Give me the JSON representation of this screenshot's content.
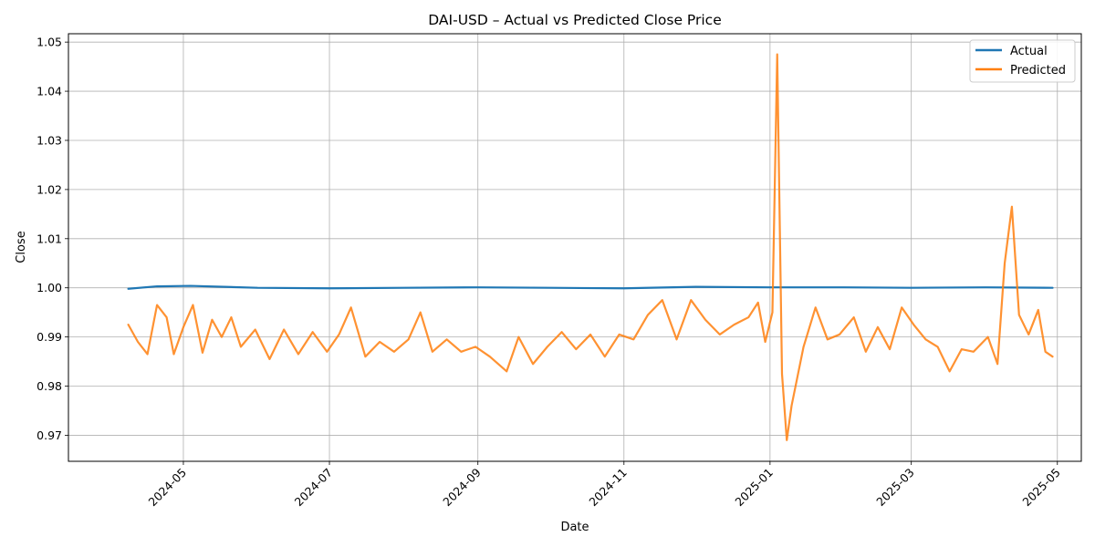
{
  "chart_data": {
    "type": "line",
    "title": "DAI-USD – Actual vs Predicted Close Price",
    "xlabel": "Date",
    "ylabel": "Close",
    "xlim": [
      "2024-03-14",
      "2025-05-11"
    ],
    "ylim": [
      0.9647,
      1.0517
    ],
    "grid": true,
    "legend_position": "top-right",
    "x_ticks": [
      "2024-05",
      "2024-07",
      "2024-09",
      "2024-11",
      "2025-01",
      "2025-03",
      "2025-05"
    ],
    "y_ticks": [
      "0.97",
      "0.98",
      "0.99",
      "1.00",
      "1.01",
      "1.02",
      "1.03",
      "1.04",
      "1.05"
    ],
    "series": [
      {
        "name": "Actual",
        "color": "#1f77b4",
        "points": [
          [
            "2024-04-08",
            0.9998
          ],
          [
            "2024-04-20",
            1.0003
          ],
          [
            "2024-05-04",
            1.0004
          ],
          [
            "2024-06-01",
            1.0
          ],
          [
            "2024-07-01",
            0.9999
          ],
          [
            "2024-08-01",
            1.0
          ],
          [
            "2024-09-01",
            1.0001
          ],
          [
            "2024-10-01",
            1.0
          ],
          [
            "2024-11-01",
            0.9999
          ],
          [
            "2024-12-01",
            1.0002
          ],
          [
            "2025-01-01",
            1.0001
          ],
          [
            "2025-02-01",
            1.0001
          ],
          [
            "2025-03-01",
            1.0
          ],
          [
            "2025-04-01",
            1.0001
          ],
          [
            "2025-04-29",
            1.0
          ]
        ]
      },
      {
        "name": "Predicted",
        "color": "#ff7f0e",
        "points": [
          [
            "2024-04-08",
            0.9925
          ],
          [
            "2024-04-12",
            0.989
          ],
          [
            "2024-04-16",
            0.9865
          ],
          [
            "2024-04-20",
            0.9965
          ],
          [
            "2024-04-24",
            0.994
          ],
          [
            "2024-04-27",
            0.9865
          ],
          [
            "2024-05-01",
            0.992
          ],
          [
            "2024-05-05",
            0.9965
          ],
          [
            "2024-05-09",
            0.9868
          ],
          [
            "2024-05-13",
            0.9935
          ],
          [
            "2024-05-17",
            0.99
          ],
          [
            "2024-05-21",
            0.994
          ],
          [
            "2024-05-25",
            0.988
          ],
          [
            "2024-05-31",
            0.9915
          ],
          [
            "2024-06-06",
            0.9855
          ],
          [
            "2024-06-12",
            0.9915
          ],
          [
            "2024-06-18",
            0.9865
          ],
          [
            "2024-06-24",
            0.991
          ],
          [
            "2024-06-30",
            0.987
          ],
          [
            "2024-07-05",
            0.9905
          ],
          [
            "2024-07-10",
            0.996
          ],
          [
            "2024-07-16",
            0.986
          ],
          [
            "2024-07-22",
            0.989
          ],
          [
            "2024-07-28",
            0.987
          ],
          [
            "2024-08-03",
            0.9895
          ],
          [
            "2024-08-08",
            0.995
          ],
          [
            "2024-08-13",
            0.987
          ],
          [
            "2024-08-19",
            0.9895
          ],
          [
            "2024-08-25",
            0.987
          ],
          [
            "2024-08-31",
            0.988
          ],
          [
            "2024-09-06",
            0.986
          ],
          [
            "2024-09-13",
            0.983
          ],
          [
            "2024-09-18",
            0.99
          ],
          [
            "2024-09-24",
            0.9845
          ],
          [
            "2024-09-30",
            0.988
          ],
          [
            "2024-10-06",
            0.991
          ],
          [
            "2024-10-12",
            0.9875
          ],
          [
            "2024-10-18",
            0.9905
          ],
          [
            "2024-10-24",
            0.986
          ],
          [
            "2024-10-30",
            0.9905
          ],
          [
            "2024-11-05",
            0.9895
          ],
          [
            "2024-11-11",
            0.9945
          ],
          [
            "2024-11-17",
            0.9975
          ],
          [
            "2024-11-23",
            0.9895
          ],
          [
            "2024-11-29",
            0.9975
          ],
          [
            "2024-12-05",
            0.9935
          ],
          [
            "2024-12-11",
            0.9905
          ],
          [
            "2024-12-17",
            0.9925
          ],
          [
            "2024-12-23",
            0.994
          ],
          [
            "2024-12-27",
            0.997
          ],
          [
            "2024-12-30",
            0.989
          ],
          [
            "2025-01-02",
            0.995
          ],
          [
            "2025-01-04",
            1.0475
          ],
          [
            "2025-01-06",
            0.9825
          ],
          [
            "2025-01-08",
            0.969
          ],
          [
            "2025-01-10",
            0.976
          ],
          [
            "2025-01-15",
            0.988
          ],
          [
            "2025-01-20",
            0.996
          ],
          [
            "2025-01-25",
            0.9895
          ],
          [
            "2025-01-30",
            0.9905
          ],
          [
            "2025-02-05",
            0.994
          ],
          [
            "2025-02-10",
            0.987
          ],
          [
            "2025-02-15",
            0.992
          ],
          [
            "2025-02-20",
            0.9875
          ],
          [
            "2025-02-25",
            0.996
          ],
          [
            "2025-03-02",
            0.9925
          ],
          [
            "2025-03-07",
            0.9895
          ],
          [
            "2025-03-12",
            0.988
          ],
          [
            "2025-03-17",
            0.983
          ],
          [
            "2025-03-22",
            0.9875
          ],
          [
            "2025-03-27",
            0.987
          ],
          [
            "2025-04-02",
            0.99
          ],
          [
            "2025-04-06",
            0.9845
          ],
          [
            "2025-04-09",
            1.005
          ],
          [
            "2025-04-12",
            1.0165
          ],
          [
            "2025-04-15",
            0.9945
          ],
          [
            "2025-04-19",
            0.9905
          ],
          [
            "2025-04-23",
            0.9955
          ],
          [
            "2025-04-26",
            0.987
          ],
          [
            "2025-04-29",
            0.986
          ]
        ]
      }
    ]
  }
}
